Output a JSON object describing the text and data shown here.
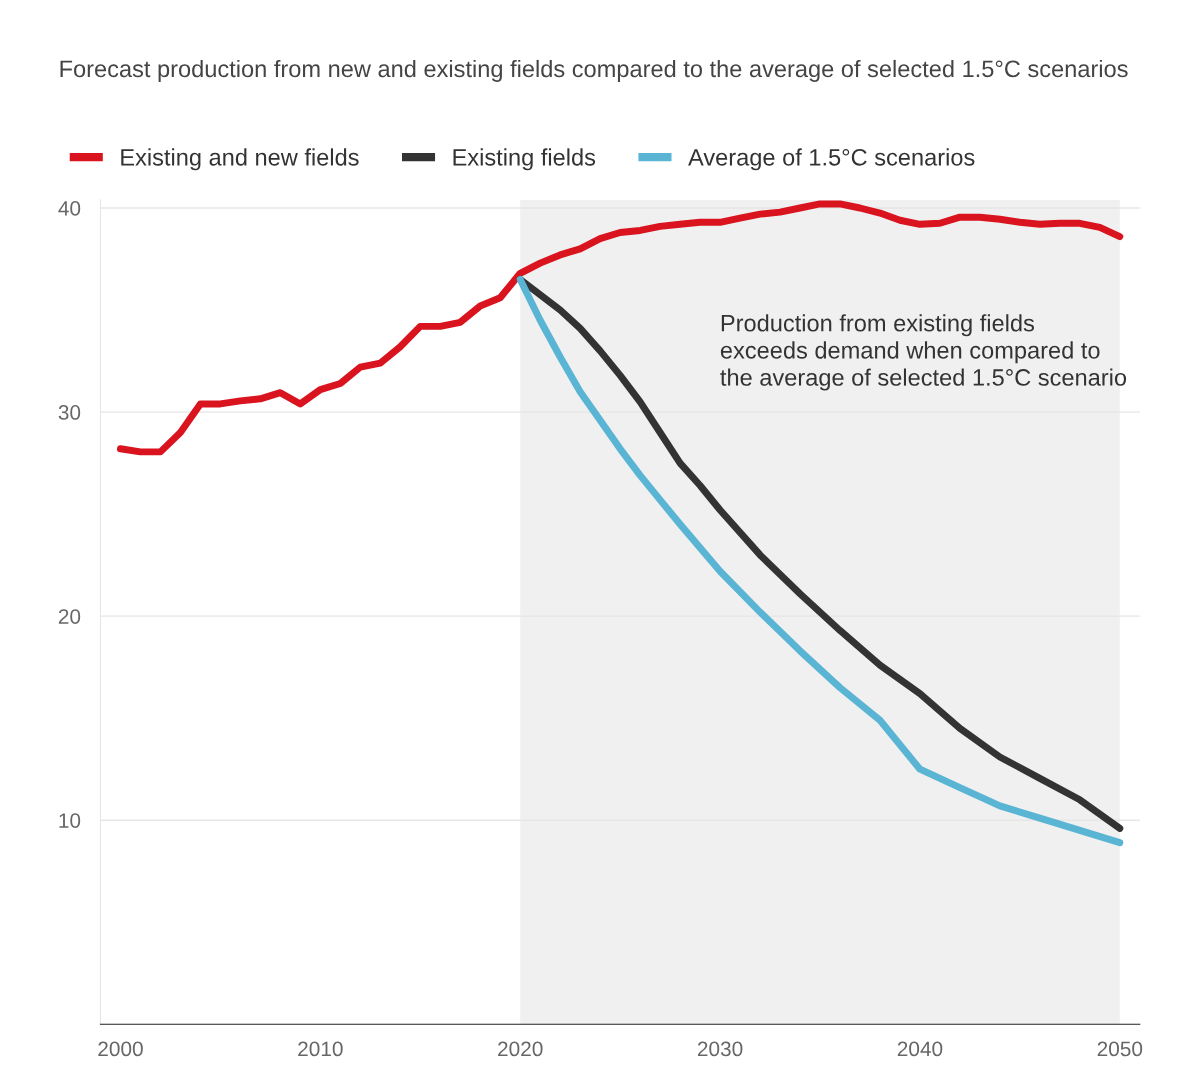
{
  "chart_data": {
    "type": "line",
    "title": "Forecast production from new and existing fields compared to the average of selected 1.5°C scenarios",
    "series": [
      {
        "name": "Existing and new fields",
        "color": "#d9141e",
        "x": [
          2000,
          2001,
          2002,
          2003,
          2004,
          2005,
          2006,
          2007,
          2008,
          2009,
          2010,
          2011,
          2012,
          2013,
          2014,
          2015,
          2016,
          2017,
          2018,
          2019,
          2020,
          2021,
          2022,
          2023,
          2024,
          2025,
          2026,
          2027,
          2028,
          2029,
          2030,
          2031,
          2032,
          2033,
          2034,
          2035,
          2036,
          2037,
          2038,
          2039,
          2040,
          2041,
          2042,
          2043,
          2044,
          2045,
          2046,
          2047,
          2048,
          2049,
          2050
        ],
        "values": [
          28.2,
          28.05,
          28.05,
          29.0,
          30.4,
          30.4,
          30.55,
          30.65,
          30.95,
          30.4,
          31.1,
          31.4,
          32.2,
          32.4,
          33.2,
          34.2,
          34.2,
          34.4,
          35.2,
          35.6,
          36.8,
          37.3,
          37.7,
          38.0,
          38.5,
          38.8,
          38.9,
          39.1,
          39.2,
          39.3,
          39.3,
          39.5,
          39.7,
          39.8,
          40.0,
          40.2,
          40.2,
          40.0,
          39.75,
          39.4,
          39.2,
          39.25,
          39.55,
          39.55,
          39.45,
          39.3,
          39.2,
          39.25,
          39.25,
          39.05,
          38.6
        ]
      },
      {
        "name": "Existing fields",
        "color": "#333333",
        "x": [
          2020,
          2022,
          2023,
          2024,
          2025,
          2026,
          2027,
          2028,
          2029,
          2030,
          2032,
          2034,
          2036,
          2038,
          2040,
          2042,
          2044,
          2046,
          2048,
          2050
        ],
        "values": [
          36.5,
          35.0,
          34.1,
          33.0,
          31.8,
          30.5,
          29.0,
          27.5,
          26.4,
          25.2,
          23.0,
          21.1,
          19.3,
          17.6,
          16.2,
          14.5,
          13.1,
          12.05,
          11.0,
          9.6
        ]
      },
      {
        "name": "Average of 1.5°C scenarios",
        "color": "#5ab4d4",
        "x": [
          2020,
          2021,
          2022,
          2023,
          2024,
          2025,
          2026,
          2027,
          2028,
          2030,
          2032,
          2034,
          2036,
          2038,
          2040,
          2042,
          2044,
          2046,
          2048,
          2050
        ],
        "values": [
          36.5,
          34.5,
          32.7,
          31.0,
          29.6,
          28.2,
          26.9,
          25.7,
          24.5,
          22.2,
          20.2,
          18.3,
          16.5,
          14.9,
          12.5,
          11.6,
          10.7,
          10.1,
          9.5,
          8.9
        ]
      }
    ],
    "bands": [
      {
        "axis": "x",
        "from": 2020,
        "to": 2050,
        "color": "#f0f0f0"
      }
    ],
    "annotations": [
      "Production from existing fields\nexceeds demand when compared to\nthe average of selected 1.5°C scenario"
    ],
    "xlim": [
      1999,
      2051
    ],
    "xticks": [
      2000,
      2010,
      2020,
      2030,
      2040,
      2050
    ],
    "ylim": [
      0,
      40.4
    ],
    "yticks": [
      10,
      20,
      30,
      40
    ],
    "grid": "y",
    "legend": "top left",
    "marker": "none",
    "line_style": "solid"
  }
}
